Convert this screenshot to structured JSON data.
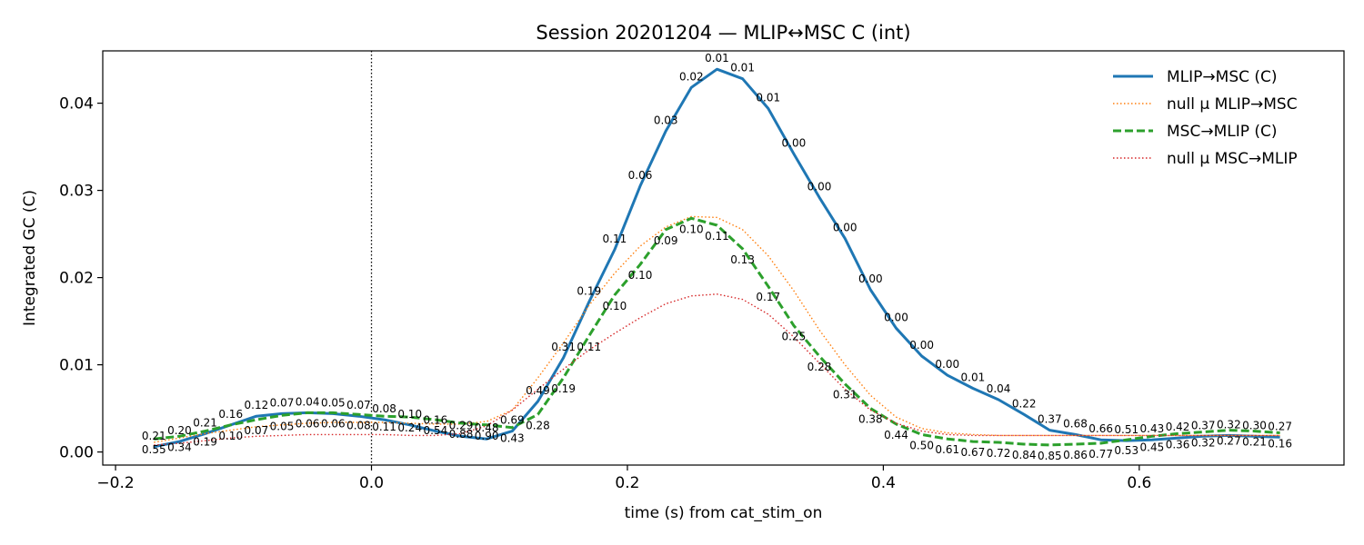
{
  "chart_data": {
    "type": "line",
    "title": "Session 20201204 — MLIP↔MSC C (int)",
    "xlabel": "time (s) from cat_stim_on",
    "ylabel": "Integrated GC (C)",
    "xlim": [
      -0.21,
      0.76
    ],
    "ylim": [
      -0.0015,
      0.046
    ],
    "x_ticks": [
      -0.2,
      0.0,
      0.2,
      0.4,
      0.6
    ],
    "x_tick_labels": [
      "−0.2",
      "0.0",
      "0.2",
      "0.4",
      "0.6"
    ],
    "y_ticks": [
      0.0,
      0.01,
      0.02,
      0.03,
      0.04
    ],
    "y_tick_labels": [
      "0.00",
      "0.01",
      "0.02",
      "0.03",
      "0.04"
    ],
    "grid": false,
    "legend_position": "top-right",
    "vline_x": 0.0,
    "x": [
      -0.17,
      -0.15,
      -0.13,
      -0.11,
      -0.09,
      -0.07,
      -0.05,
      -0.03,
      -0.01,
      0.01,
      0.03,
      0.05,
      0.07,
      0.09,
      0.11,
      0.13,
      0.15,
      0.17,
      0.19,
      0.21,
      0.23,
      0.25,
      0.27,
      0.29,
      0.31,
      0.33,
      0.35,
      0.37,
      0.39,
      0.41,
      0.43,
      0.45,
      0.47,
      0.49,
      0.51,
      0.53,
      0.55,
      0.57,
      0.59,
      0.61,
      0.63,
      0.65,
      0.67,
      0.69,
      0.71
    ],
    "series": [
      {
        "name": "MLIP→MSC (C)",
        "color": "#1f77b4",
        "style": "solid",
        "values": [
          0.0006,
          0.0012,
          0.0021,
          0.0031,
          0.0041,
          0.0044,
          0.0045,
          0.0044,
          0.0041,
          0.0037,
          0.0031,
          0.0024,
          0.0018,
          0.0015,
          0.0024,
          0.0058,
          0.0108,
          0.0172,
          0.0232,
          0.0305,
          0.0368,
          0.0418,
          0.0439,
          0.0428,
          0.0394,
          0.0342,
          0.0292,
          0.0245,
          0.0186,
          0.0142,
          0.011,
          0.0088,
          0.0073,
          0.006,
          0.0043,
          0.0025,
          0.002,
          0.0014,
          0.0013,
          0.0014,
          0.0016,
          0.0018,
          0.0019,
          0.0018,
          0.0017
        ],
        "pvalues": [
          "0.21",
          "0.20",
          "0.21",
          "0.16",
          "0.12",
          "0.07",
          "0.04",
          "0.05",
          "0.07",
          "0.08",
          "0.10",
          "0.16",
          "0.29",
          "0.48",
          "0.69",
          "0.49",
          "0.31",
          "0.19",
          "0.11",
          "0.06",
          "0.03",
          "0.02",
          "0.01",
          "0.01",
          "0.01",
          "0.00",
          "0.00",
          "0.00",
          "0.00",
          "0.00",
          "0.00",
          "0.00",
          "0.01",
          "0.04",
          "0.22",
          "0.37",
          "0.68",
          "0.66",
          "0.51",
          "0.43",
          "0.42",
          "0.37",
          "0.32",
          "0.30",
          "0.27"
        ]
      },
      {
        "name": "null μ MLIP→MSC",
        "color": "#ff7f0e",
        "style": "dotted",
        "values": [
          0.0011,
          0.0016,
          0.0021,
          0.0025,
          0.0029,
          0.0031,
          0.0033,
          0.0034,
          0.0034,
          0.0034,
          0.0033,
          0.0032,
          0.0032,
          0.0035,
          0.0048,
          0.0085,
          0.0125,
          0.0168,
          0.0205,
          0.0236,
          0.0258,
          0.027,
          0.0269,
          0.0255,
          0.0225,
          0.0185,
          0.014,
          0.01,
          0.0065,
          0.004,
          0.0027,
          0.0022,
          0.002,
          0.0019,
          0.0019,
          0.0019,
          0.0019,
          0.0019,
          0.0019,
          0.0019,
          0.0019,
          0.0019,
          0.0019,
          0.0019,
          0.0019
        ]
      },
      {
        "name": "MSC→MLIP (C)",
        "color": "#2ca02c",
        "style": "dashed",
        "values": [
          0.0015,
          0.0018,
          0.0024,
          0.0031,
          0.0037,
          0.0042,
          0.0045,
          0.0045,
          0.0043,
          0.0041,
          0.004,
          0.0037,
          0.0033,
          0.0031,
          0.0028,
          0.0043,
          0.0085,
          0.0133,
          0.018,
          0.0215,
          0.0255,
          0.0268,
          0.026,
          0.0233,
          0.019,
          0.0145,
          0.011,
          0.0078,
          0.005,
          0.0032,
          0.002,
          0.0015,
          0.0012,
          0.0011,
          0.0009,
          0.0008,
          0.0009,
          0.001,
          0.0014,
          0.0018,
          0.0021,
          0.0023,
          0.0025,
          0.0024,
          0.0022
        ]
      },
      {
        "name": "null μ MSC→MLIP",
        "color": "#d62728",
        "style": "dotted",
        "values": [
          0.0008,
          0.001,
          0.0013,
          0.0016,
          0.0018,
          0.0019,
          0.002,
          0.002,
          0.002,
          0.002,
          0.0019,
          0.0019,
          0.0021,
          0.003,
          0.0048,
          0.0072,
          0.0095,
          0.0117,
          0.0136,
          0.0154,
          0.017,
          0.0179,
          0.0181,
          0.0175,
          0.0158,
          0.0132,
          0.0102,
          0.0072,
          0.0048,
          0.0033,
          0.0024,
          0.002,
          0.0019,
          0.0019,
          0.0019,
          0.0019,
          0.0019,
          0.0019,
          0.0019,
          0.0019,
          0.0019,
          0.0019,
          0.0019,
          0.0019,
          0.0019
        ]
      }
    ],
    "pvalue_labels_second_series": [
      "0.55",
      "0.34",
      "0.19",
      "0.10",
      "0.07",
      "0.05",
      "0.06",
      "0.06",
      "0.08",
      "0.11",
      "0.24",
      "0.54",
      "0.88",
      "0.90",
      "0.43",
      "0.28",
      "0.19",
      "0.11",
      "0.10",
      "0.10",
      "0.09",
      "0.10",
      "0.11",
      "0.13",
      "0.17",
      "0.25",
      "0.28",
      "0.31",
      "0.38",
      "0.44",
      "0.50",
      "0.61",
      "0.67",
      "0.72",
      "0.84",
      "0.85",
      "0.86",
      "0.77",
      "0.53",
      "0.45",
      "0.36",
      "0.32",
      "0.27",
      "0.21",
      "0.16"
    ]
  }
}
